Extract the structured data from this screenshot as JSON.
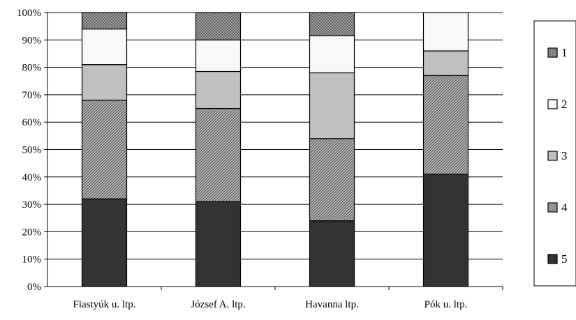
{
  "chart_data": {
    "type": "bar",
    "stacked": true,
    "percent": true,
    "title": "",
    "xlabel": "",
    "ylabel": "",
    "ylim": [
      0,
      100
    ],
    "yticks": [
      "0%",
      "10%",
      "20%",
      "30%",
      "40%",
      "50%",
      "60%",
      "70%",
      "80%",
      "90%",
      "100%"
    ],
    "grid": "horizontal",
    "legend_position": "right",
    "categories": [
      "Fiastyúk u. ltp.",
      "József A. ltp.",
      "Havanna ltp.",
      "Pók u. ltp."
    ],
    "series": [
      {
        "name": "5",
        "values": [
          32,
          31,
          24,
          41
        ],
        "fill": "#333333",
        "pattern": "solid"
      },
      {
        "name": "4",
        "values": [
          36,
          34,
          30,
          36
        ],
        "fill": "#9a9a9a",
        "pattern": "diagonal-hatch"
      },
      {
        "name": "3",
        "values": [
          13,
          13.5,
          24,
          9
        ],
        "fill": "#c0c0c0",
        "pattern": "solid"
      },
      {
        "name": "2",
        "values": [
          13,
          11.5,
          13.5,
          14
        ],
        "fill": "#ffffff",
        "pattern": "light-dots"
      },
      {
        "name": "1",
        "values": [
          6,
          10,
          8.5,
          0
        ],
        "fill": "#a8a8a8",
        "pattern": "cross-hatch"
      }
    ],
    "legend_order": [
      "1",
      "2",
      "3",
      "4",
      "5"
    ]
  }
}
